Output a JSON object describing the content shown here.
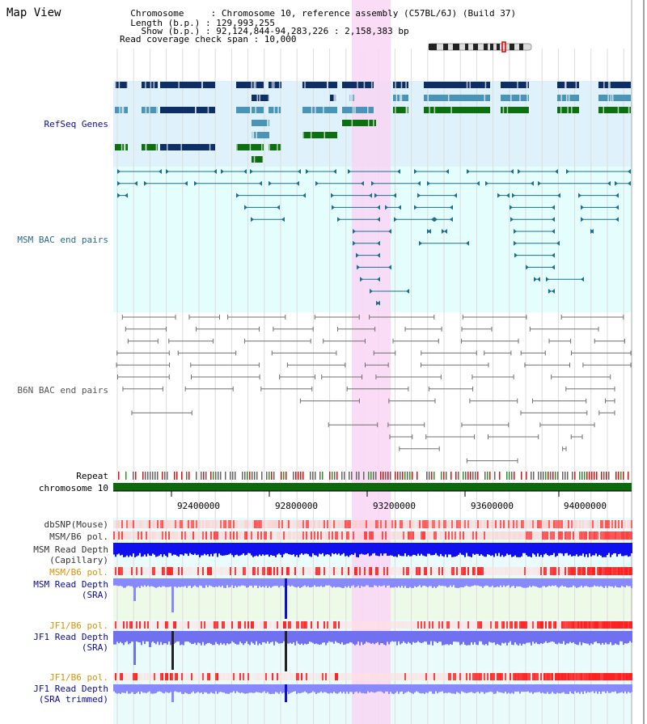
{
  "view_title": "Map View",
  "info": {
    "chromosome": "  Chromosome     : Chromosome 10, reference assembly (C57BL/6J) (Build 37)",
    "length": "  Length (b.p.) : 129,993,255",
    "show": "    Show (b.p.) : 92,124,844-94,283,226 : 2,158,383 bp",
    "coverage": "Read coverage check span : 10,000"
  },
  "tracks": {
    "refseq": "RefSeq Genes",
    "msm_bac": "MSM BAC end pairs",
    "b6n_bac": "B6N BAC end pairs",
    "repeat": "Repeat",
    "chromosome": "chromosome 10",
    "dbsnp": "dbSNP(Mouse)",
    "msm_b6_pol": "MSM/B6 pol.",
    "msm_depth_cap_1": "MSM Read Depth",
    "msm_depth_cap_2": "(Capillary)",
    "msm_b6_pol2": "MSM/B6 pol.",
    "msm_depth_sra_1": "MSM Read Depth",
    "msm_depth_sra_2": "(SRA)",
    "jf1_b6_pol": "JF1/B6 pol.",
    "jf1_depth_sra_1": "JF1 Read Depth",
    "jf1_depth_sra_2": "(SRA)",
    "jf1_b6_pol2": "JF1/B6 pol.",
    "jf1_depth_trim_1": "JF1 Read Depth",
    "jf1_depth_trim_2": "(SRA trimmed)"
  },
  "axis": {
    "ticks": [
      "92400000",
      "92800000",
      "93200000",
      "93600000",
      "94000000"
    ]
  },
  "colors": {
    "refseq_bg": "#dff2fb",
    "msm_bg": "#e4fdfd",
    "highlight": "#f9d6f5",
    "gene_dark": "#0d2f66",
    "gene_mid": "#4a94b8",
    "gene_green": "#0c7010",
    "msm_line": "#1c6f8d",
    "b6n_line": "#707070",
    "label_blue": "#0a0a9a",
    "label_orange": "#e09000",
    "label_teal": "#2a6a8a"
  }
}
